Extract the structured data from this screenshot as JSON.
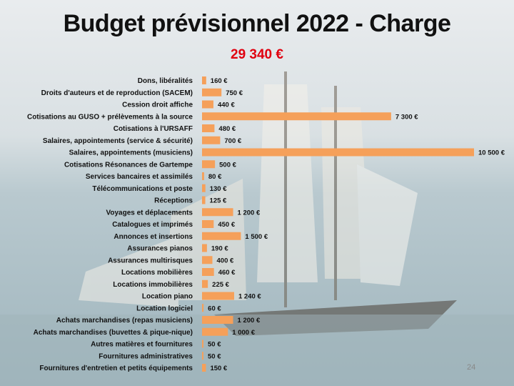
{
  "slide": {
    "title": "Budget prévisionnel 2022 - Charge",
    "total": "29 340 €",
    "page_number": "24"
  },
  "colors": {
    "bar": "#f5a05a",
    "total": "#e0000f",
    "sea": "#a9bcc3",
    "sky": "#dfe4e6"
  },
  "chart_data": {
    "type": "bar",
    "orientation": "horizontal",
    "title": "",
    "xlabel": "",
    "ylabel": "",
    "unit": "€",
    "categories": [
      "Dons, libéralités",
      "Droits d'auteurs et de reproduction (SACEM)",
      "Cession droit affiche",
      "Cotisations au GUSO + prélèvements à la source",
      "Cotisations à l'URSAFF",
      "Salaires, appointements (service & sécurité)",
      "Salaires, appointements (musiciens)",
      "Cotisations Résonances de Gartempe",
      "Services bancaires et assimilés",
      "Télécommunications et poste",
      "Réceptions",
      "Voyages et déplacements",
      "Catalogues et imprimés",
      "Annonces et insertions",
      "Assurances pianos",
      "Assurances multirisques",
      "Locations mobilières",
      "Locations immobilières",
      "Location piano",
      "Location logiciel",
      "Achats marchandises (repas musiciens)",
      "Achats marchandises (buvettes & pique-nique)",
      "Autres matières et fournitures",
      "Fournitures administratives",
      "Fournitures d'entretien et petits équipements"
    ],
    "values": [
      160,
      750,
      440,
      7300,
      480,
      700,
      10500,
      500,
      80,
      130,
      125,
      1200,
      450,
      1500,
      190,
      400,
      460,
      225,
      1240,
      60,
      1200,
      1000,
      50,
      50,
      150
    ],
    "value_labels": [
      "160 €",
      "750 €",
      "440 €",
      "7 300 €",
      "480 €",
      "700 €",
      "10 500 €",
      "500 €",
      "80 €",
      "130 €",
      "125 €",
      "1 200 €",
      "450 €",
      "1 500 €",
      "190 €",
      "400 €",
      "460 €",
      "225 €",
      "1 240 €",
      "60 €",
      "1 200 €",
      "1 000 €",
      "50 €",
      "50 €",
      "150 €"
    ],
    "xlim": [
      0,
      10500
    ],
    "grid": false,
    "legend": "none"
  }
}
